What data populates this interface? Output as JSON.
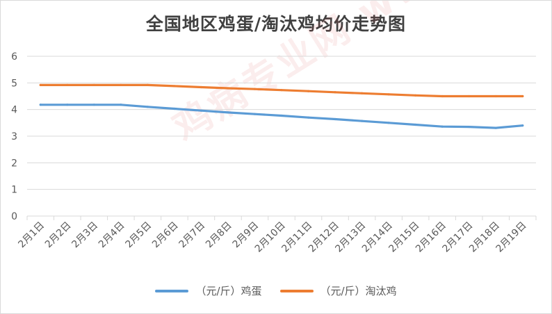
{
  "chart_data": {
    "type": "line",
    "title": "全国地区鸡蛋/淘汰鸡均价走势图",
    "categories": [
      "2月1日",
      "2月2日",
      "2月3日",
      "2月4日",
      "2月5日",
      "2月6日",
      "2月7日",
      "2月8日",
      "2月9日",
      "2月10日",
      "2月11日",
      "2月12日",
      "2月13日",
      "2月14日",
      "2月15日",
      "2月16日",
      "2月17日",
      "2月18日",
      "2月19日"
    ],
    "series": [
      {
        "name": "（元/斤）鸡蛋",
        "color": "#5b9bd5",
        "values": [
          4.18,
          4.18,
          4.18,
          4.18,
          4.1,
          4.03,
          3.96,
          3.89,
          3.83,
          3.77,
          3.7,
          3.64,
          3.57,
          3.5,
          3.43,
          3.36,
          3.35,
          3.31,
          3.4
        ]
      },
      {
        "name": "（元/斤）淘汰鸡",
        "color": "#ed7d31",
        "values": [
          4.92,
          4.92,
          4.92,
          4.92,
          4.92,
          4.88,
          4.84,
          4.8,
          4.77,
          4.73,
          4.69,
          4.65,
          4.61,
          4.57,
          4.53,
          4.5,
          4.5,
          4.5,
          4.5
        ]
      }
    ],
    "yticks": [
      "0",
      "1",
      "2",
      "3",
      "4",
      "5",
      "6"
    ],
    "ylim": [
      0,
      6
    ],
    "grid": true,
    "legend_position": "bottom",
    "watermark": "鸡病专业网 www.jbzyw.com"
  }
}
